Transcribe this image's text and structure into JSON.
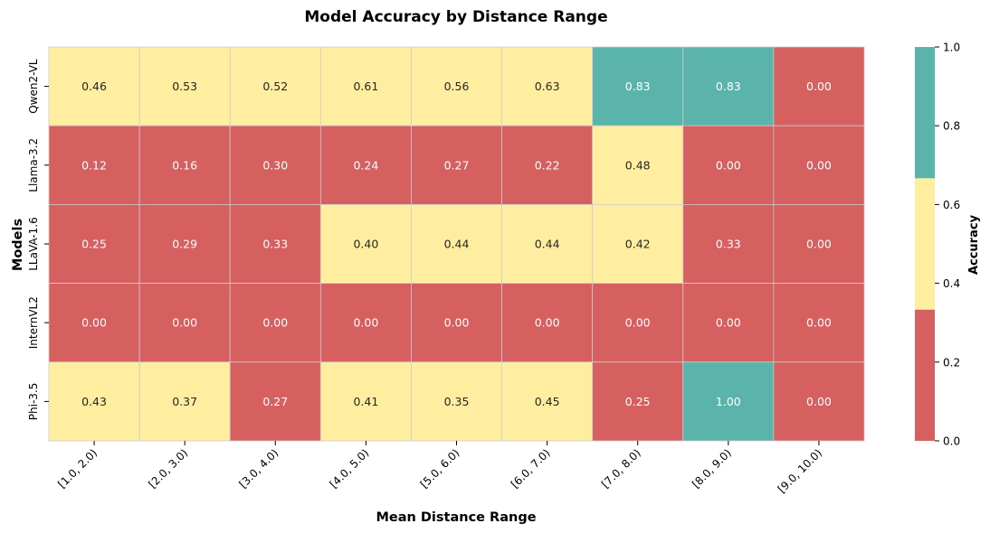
{
  "chart_data": {
    "type": "heatmap",
    "title": "Model Accuracy by Distance Range",
    "xlabel": "Mean Distance Range",
    "ylabel": "Models",
    "x_categories": [
      "[1.0, 2.0)",
      "[2.0, 3.0)",
      "[3.0, 4.0)",
      "[4.0, 5.0)",
      "[5.0, 6.0)",
      "[6.0, 7.0)",
      "[7.0, 8.0)",
      "[8.0, 9.0)",
      "[9.0, 10.0)"
    ],
    "y_categories": [
      "Qwen2-VL",
      "Llama-3.2",
      "LLaVA-1.6",
      "InternVL2",
      "Phi-3.5"
    ],
    "values": [
      [
        0.46,
        0.53,
        0.52,
        0.61,
        0.56,
        0.63,
        0.83,
        0.83,
        0.0
      ],
      [
        0.12,
        0.16,
        0.3,
        0.24,
        0.27,
        0.22,
        0.48,
        0.0,
        0.0
      ],
      [
        0.25,
        0.29,
        0.33,
        0.4,
        0.44,
        0.44,
        0.42,
        0.33,
        0.0
      ],
      [
        0.0,
        0.0,
        0.0,
        0.0,
        0.0,
        0.0,
        0.0,
        0.0,
        0.0
      ],
      [
        0.43,
        0.37,
        0.27,
        0.41,
        0.35,
        0.45,
        0.25,
        1.0,
        0.0
      ]
    ],
    "labels": [
      [
        "0.46",
        "0.53",
        "0.52",
        "0.61",
        "0.56",
        "0.63",
        "0.83",
        "0.83",
        "0.00"
      ],
      [
        "0.12",
        "0.16",
        "0.30",
        "0.24",
        "0.27",
        "0.22",
        "0.48",
        "0.00",
        "0.00"
      ],
      [
        "0.25",
        "0.29",
        "0.33",
        "0.40",
        "0.44",
        "0.44",
        "0.42",
        "0.33",
        "0.00"
      ],
      [
        "0.00",
        "0.00",
        "0.00",
        "0.00",
        "0.00",
        "0.00",
        "0.00",
        "0.00",
        "0.00"
      ],
      [
        "0.43",
        "0.37",
        "0.27",
        "0.41",
        "0.35",
        "0.45",
        "0.25",
        "1.00",
        "0.00"
      ]
    ],
    "colorbar": {
      "label": "Accuracy",
      "range": [
        0.0,
        1.0
      ],
      "ticks": [
        0.0,
        0.2,
        0.4,
        0.6,
        0.8,
        1.0
      ],
      "tick_labels": [
        "0.0",
        "0.2",
        "0.4",
        "0.6",
        "0.8",
        "1.0"
      ],
      "bins": [
        {
          "from": 0.0,
          "to": 0.3333,
          "color": "#d65f5f"
        },
        {
          "from": 0.3333,
          "to": 0.6667,
          "color": "#ffeda0"
        },
        {
          "from": 0.6667,
          "to": 1.0,
          "color": "#5ab4ac"
        }
      ]
    },
    "text_colors": {
      "dark": "#262626",
      "light": "#ffffff"
    },
    "grid_line_color": "#cccccc"
  }
}
